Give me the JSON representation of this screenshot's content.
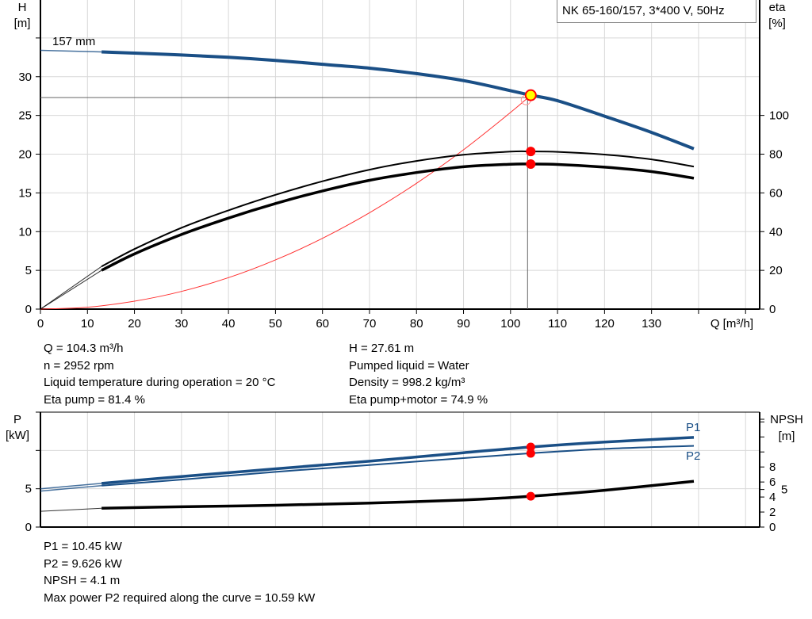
{
  "legend_title": "NK 65-160/157, 3*400 V, 50Hz",
  "colors": {
    "head": "#1a4f86",
    "eta": "#000000",
    "system": "#ff3030",
    "point": "#ff0000",
    "op_point_fill": "#ffff00",
    "p": "#1a4f86",
    "npsh": "#000000",
    "grid": "#d8d8d8"
  },
  "chart_data": [
    {
      "type": "line",
      "title": "",
      "xlabel": "Q [m³/h]",
      "ylabel": "H\n[m]",
      "ylabel_left_lines": [
        "H",
        "[m]"
      ],
      "ylabel_right_lines": [
        "eta",
        "[%]"
      ],
      "xlim": [
        0,
        153
      ],
      "ylim_left": [
        0,
        39.9
      ],
      "ylim_right": [
        0,
        159.6
      ],
      "grid": true,
      "x_ticks": [
        0,
        10,
        20,
        30,
        40,
        50,
        60,
        70,
        80,
        90,
        100,
        110,
        120,
        130
      ],
      "y_ticks_left": [
        0,
        5,
        10,
        15,
        20,
        25,
        30
      ],
      "y_ticks_left_unlabeled": [
        35
      ],
      "y_ticks_right": [
        0,
        20,
        40,
        60,
        80,
        100
      ],
      "curve_label": "157 mm",
      "operating_point": {
        "Q": 104.3,
        "H": 27.61
      },
      "series": [
        {
          "key": "head",
          "axis": "left",
          "x": [
            0,
            13,
            20,
            30,
            40,
            50,
            60,
            70,
            80,
            90,
            100,
            104.3,
            110,
            120,
            130,
            139
          ],
          "y": [
            33.4,
            33.2,
            33.05,
            32.8,
            32.5,
            32.1,
            31.6,
            31.1,
            30.4,
            29.5,
            28.2,
            27.61,
            26.9,
            24.9,
            22.8,
            20.7
          ]
        },
        {
          "key": "eta_pump",
          "axis": "right",
          "x": [
            0,
            13,
            20,
            30,
            40,
            50,
            60,
            70,
            80,
            90,
            100,
            104.3,
            110,
            120,
            130,
            139
          ],
          "y": [
            0,
            22,
            31,
            42,
            51,
            59,
            66,
            72,
            76.5,
            79.7,
            81.3,
            81.4,
            81.2,
            79.8,
            77.3,
            73.6
          ]
        },
        {
          "key": "eta_pump_motor",
          "axis": "right",
          "x": [
            0,
            13,
            20,
            30,
            40,
            50,
            60,
            70,
            80,
            90,
            100,
            104.3,
            110,
            120,
            130,
            139
          ],
          "y": [
            0,
            20,
            28.5,
            38.5,
            47,
            54.5,
            61,
            66.5,
            70.5,
            73.5,
            74.8,
            74.9,
            74.7,
            73.3,
            71,
            67.6
          ]
        },
        {
          "key": "system",
          "axis": "left",
          "x": [
            0,
            10,
            20,
            30,
            40,
            50,
            60,
            70,
            80,
            90,
            100,
            104.3
          ],
          "y": [
            0,
            0.25,
            1.02,
            2.28,
            4.06,
            6.35,
            9.14,
            12.44,
            16.24,
            20.56,
            25.38,
            27.61
          ]
        }
      ],
      "markers": [
        {
          "Q": 104.3,
          "eta": 81.4
        },
        {
          "Q": 104.3,
          "eta": 74.9
        }
      ]
    },
    {
      "type": "line",
      "ylabel_left_lines": [
        "P",
        "[kW]"
      ],
      "ylabel_right_lines": [
        "NPSH",
        "[m]"
      ],
      "xlim": [
        0,
        153
      ],
      "ylim_left": [
        0,
        15
      ],
      "ylim_right": [
        0,
        15.3
      ],
      "grid": true,
      "y_ticks_left": [
        0,
        5
      ],
      "y_ticks_left_unlabeled": [
        10,
        15
      ],
      "y_ticks_right": [
        0,
        2,
        4,
        5,
        6,
        8
      ],
      "y_ticks_right_unlabeled": [
        10,
        12,
        14
      ],
      "series": [
        {
          "key": "P1",
          "name": "P1",
          "axis": "left",
          "x": [
            0,
            13,
            30,
            50,
            70,
            90,
            104.3,
            120,
            139
          ],
          "y": [
            5.0,
            5.7,
            6.6,
            7.6,
            8.6,
            9.7,
            10.45,
            11.1,
            11.7
          ]
        },
        {
          "key": "P2",
          "name": "P2",
          "axis": "left",
          "x": [
            0,
            13,
            30,
            50,
            70,
            90,
            104.3,
            120,
            139
          ],
          "y": [
            4.7,
            5.4,
            6.2,
            7.2,
            8.1,
            9.0,
            9.626,
            10.2,
            10.6
          ]
        },
        {
          "key": "NPSH",
          "axis": "right",
          "x": [
            0,
            13,
            30,
            50,
            70,
            90,
            104.3,
            120,
            139
          ],
          "y": [
            2.1,
            2.5,
            2.7,
            2.9,
            3.2,
            3.6,
            4.1,
            4.9,
            6.1
          ]
        }
      ],
      "markers": [
        {
          "Q": 104.3,
          "P": 10.45
        },
        {
          "Q": 104.3,
          "P": 9.626
        },
        {
          "Q": 104.3,
          "NPSH": 4.1
        }
      ]
    }
  ],
  "info_top_left": [
    "Q = 104.3 m³/h",
    "n = 2952 rpm",
    "Liquid temperature during operation = 20 °C",
    "Eta pump = 81.4 %"
  ],
  "info_top_right": [
    "H = 27.61 m",
    "Pumped liquid = Water",
    "Density = 998.2 kg/m³",
    "Eta pump+motor = 74.9 %"
  ],
  "info_bottom": [
    "P1 = 10.45 kW",
    "P2 = 9.626 kW",
    "NPSH = 4.1 m",
    "Max power P2 required along the curve = 10.59 kW"
  ]
}
